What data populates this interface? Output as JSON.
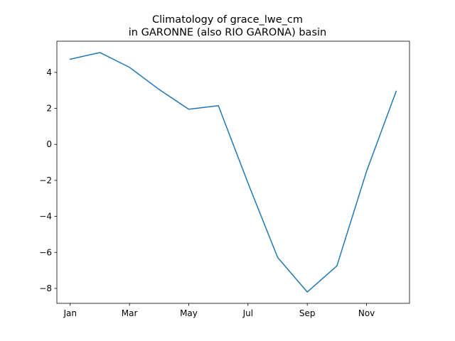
{
  "chart_data": {
    "type": "line",
    "title": "Climatology of grace_lwe_cm",
    "subtitle": "in GARONNE (also RIO GARONA) basin",
    "xlabel": "",
    "ylabel": "",
    "x": [
      1,
      2,
      3,
      4,
      5,
      6,
      7,
      8,
      9,
      10,
      11,
      12
    ],
    "x_tick_values": [
      1,
      3,
      5,
      7,
      9,
      11
    ],
    "x_tick_labels": [
      "Jan",
      "Mar",
      "May",
      "Jul",
      "Sep",
      "Nov"
    ],
    "xlim": [
      0.55,
      12.45
    ],
    "ylim": [
      -8.83,
      5.73
    ],
    "y_ticks": [
      4,
      2,
      0,
      -2,
      -4,
      -6,
      -8
    ],
    "y_tick_labels": [
      "4",
      "2",
      "0",
      "−2",
      "−4",
      "−6",
      "−8"
    ],
    "series": [
      {
        "color": "#1f77b4",
        "values": [
          4.73,
          5.1,
          4.28,
          3.05,
          1.95,
          2.15,
          -2.15,
          -6.28,
          -8.2,
          -6.75,
          -1.5,
          2.95
        ]
      }
    ],
    "grid": false,
    "legend": "none"
  }
}
